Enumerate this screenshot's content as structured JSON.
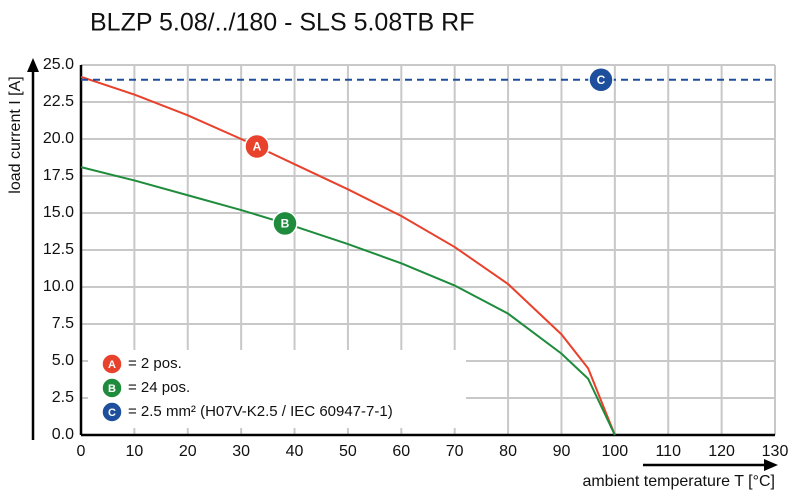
{
  "chart_data": {
    "type": "line",
    "title": "BLZP 5.08/../180 - SLS 5.08TB RF",
    "x_label": "ambient temperature T [°C]",
    "y_label": "load current I [A]",
    "xlim": [
      0,
      130
    ],
    "ylim": [
      0,
      25
    ],
    "xticks": [
      0,
      10,
      20,
      30,
      40,
      50,
      60,
      70,
      80,
      90,
      100,
      110,
      120,
      130
    ],
    "yticks": [
      {
        "value": 0,
        "label": "0.0"
      },
      2.5,
      {
        "value": 5,
        "label": "5.0"
      },
      7.5,
      {
        "value": 10,
        "label": "10.0"
      },
      12.5,
      {
        "value": 15,
        "label": "15.0"
      },
      17.5,
      {
        "value": 20,
        "label": "20.0"
      },
      22.5,
      {
        "value": 25,
        "label": "25.0"
      }
    ],
    "grid": true,
    "series": [
      {
        "name": "= 2 pos.",
        "marker": "A",
        "color": "#e8412c",
        "x": [
          0,
          10,
          20,
          30,
          40,
          50,
          60,
          70,
          80,
          90,
          95,
          100
        ],
        "values": [
          24.2,
          23.0,
          21.6,
          20.0,
          18.3,
          16.6,
          14.8,
          12.7,
          10.2,
          6.8,
          4.5,
          0
        ]
      },
      {
        "name": "= 24 pos.",
        "marker": "B",
        "color": "#1e8c3c",
        "x": [
          0,
          10,
          20,
          30,
          40,
          50,
          60,
          70,
          80,
          90,
          95,
          100
        ],
        "values": [
          18.1,
          17.2,
          16.2,
          15.2,
          14.1,
          12.9,
          11.6,
          10.1,
          8.2,
          5.5,
          3.8,
          0
        ]
      },
      {
        "name": "= 2.5 mm² (H07V-K2.5 / IEC 60947-7-1)",
        "marker": "C",
        "color": "#1d4f9c",
        "dashed": true,
        "x": [
          0,
          130
        ],
        "values": [
          24,
          24
        ]
      }
    ]
  }
}
